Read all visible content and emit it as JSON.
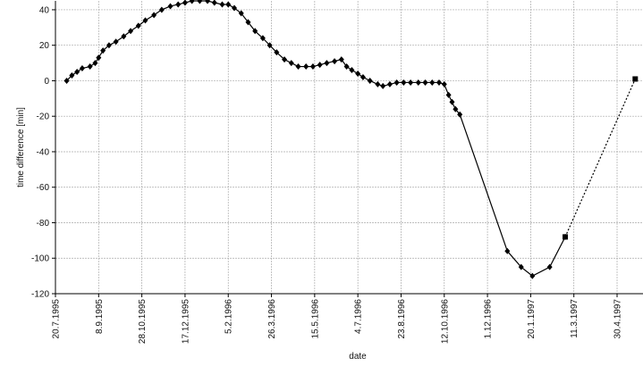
{
  "chart_data": {
    "type": "line",
    "x_label": "date",
    "y_label": "time difference [min]",
    "xlim": [
      "1995-07-20",
      "1997-05-30"
    ],
    "ylim": [
      -120,
      45
    ],
    "yticks": [
      -120,
      -100,
      -80,
      -60,
      -40,
      -20,
      0,
      20,
      40
    ],
    "xticks": [
      {
        "value": "1995-07-20",
        "label": "20.7.1995"
      },
      {
        "value": "1995-09-08",
        "label": "8.9.1995"
      },
      {
        "value": "1995-10-28",
        "label": "28.10.1995"
      },
      {
        "value": "1995-12-17",
        "label": "17.12.1995"
      },
      {
        "value": "1996-02-05",
        "label": "5.2.1996"
      },
      {
        "value": "1996-03-26",
        "label": "26.3.1996"
      },
      {
        "value": "1996-05-15",
        "label": "15.5.1996"
      },
      {
        "value": "1996-07-04",
        "label": "4.7.1996"
      },
      {
        "value": "1996-08-23",
        "label": "23.8.1996"
      },
      {
        "value": "1996-10-12",
        "label": "12.10.1996"
      },
      {
        "value": "1996-12-01",
        "label": "1.12.1996"
      },
      {
        "value": "1997-01-20",
        "label": "20.1.1997"
      },
      {
        "value": "1997-03-11",
        "label": "11.3.1997"
      },
      {
        "value": "1997-04-30",
        "label": "30.4.1997"
      }
    ],
    "grid": true,
    "series": [
      {
        "color": "#000000",
        "marker": "diamond",
        "dash": "solid",
        "x": [
          "1995-08-02",
          "1995-08-08",
          "1995-08-14",
          "1995-08-20",
          "1995-08-29",
          "1995-09-04",
          "1995-09-08",
          "1995-09-13",
          "1995-09-20",
          "1995-09-28",
          "1995-10-07",
          "1995-10-15",
          "1995-10-24",
          "1995-11-01",
          "1995-11-11",
          "1995-11-20",
          "1995-11-30",
          "1995-12-09",
          "1995-12-17",
          "1995-12-25",
          "1996-01-03",
          "1996-01-12",
          "1996-01-20",
          "1996-01-29",
          "1996-02-05",
          "1996-02-12",
          "1996-02-20",
          "1996-02-28",
          "1996-03-07",
          "1996-03-16",
          "1996-03-24",
          "1996-04-01",
          "1996-04-10",
          "1996-04-18",
          "1996-04-26",
          "1996-05-05",
          "1996-05-13",
          "1996-05-21",
          "1996-05-29",
          "1996-06-07",
          "1996-06-15",
          "1996-06-21",
          "1996-06-27",
          "1996-07-04",
          "1996-07-10",
          "1996-07-18",
          "1996-07-27",
          "1996-08-02",
          "1996-08-10",
          "1996-08-18",
          "1996-08-26",
          "1996-09-03",
          "1996-09-12",
          "1996-09-20",
          "1996-09-28",
          "1996-10-06",
          "1996-10-12",
          "1996-10-17",
          "1996-10-21",
          "1996-10-25",
          "1996-10-30",
          "1996-12-24",
          "1997-01-09",
          "1997-01-22",
          "1997-02-11",
          "1997-03-01"
        ],
        "values": [
          0,
          3,
          5,
          7,
          8,
          10,
          13,
          17,
          20,
          22,
          25,
          28,
          31,
          34,
          37,
          40,
          42,
          43,
          44,
          45,
          45,
          45,
          44,
          43,
          43,
          41,
          38,
          33,
          28,
          24,
          20,
          16,
          12,
          10,
          8,
          8,
          8,
          9,
          10,
          11,
          12,
          8,
          6,
          4,
          2,
          0,
          -2,
          -3,
          -2,
          -1,
          -1,
          -1,
          -1,
          -1,
          -1,
          -1,
          -2,
          -8,
          -12,
          -16,
          -19,
          -96,
          -105,
          -110,
          -105,
          -88
        ]
      },
      {
        "color": "#000000",
        "marker": "square",
        "dash": "dotted",
        "x": [
          "1997-03-01",
          "1997-05-21"
        ],
        "values": [
          -88,
          1
        ]
      }
    ]
  }
}
